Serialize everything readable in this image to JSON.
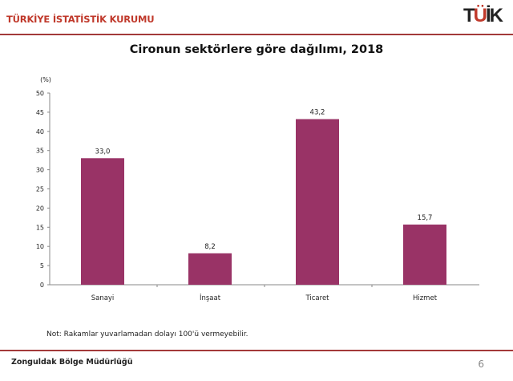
{
  "header": {
    "org": "TÜRKİYE İSTATİSTİK KURUMU",
    "logo": "TÜİK"
  },
  "chart_data": {
    "type": "bar",
    "title": "Cironun sektörlere göre dağılımı, 2018",
    "ylabel": "(%)",
    "xlabel": "",
    "categories": [
      "Sanayi",
      "İnşaat",
      "Ticaret",
      "Hizmet"
    ],
    "values": [
      33.0,
      8.2,
      43.2,
      15.7
    ],
    "data_labels": [
      "33,0",
      "8,2",
      "43,2",
      "15,7"
    ],
    "ylim": [
      0,
      50
    ],
    "yticks": [
      0,
      5,
      10,
      15,
      20,
      25,
      30,
      35,
      40,
      45,
      50
    ],
    "grid": false,
    "bar_color": "#993366"
  },
  "note": "Not: Rakamlar yuvarlamadan dolayı 100'ü vermeyebilir.",
  "footer": {
    "office": "Zonguldak Bölge Müdürlüğü",
    "page": "6"
  }
}
